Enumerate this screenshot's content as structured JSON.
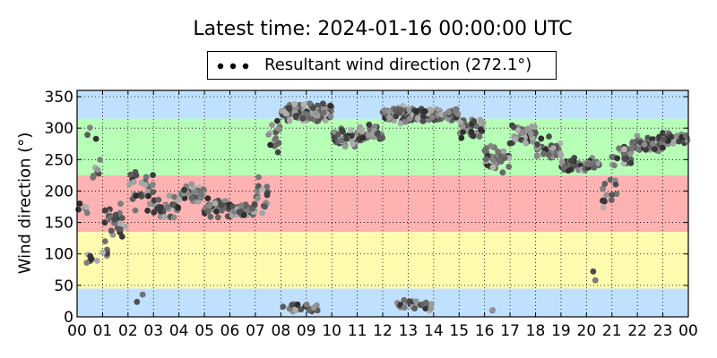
{
  "chart_data": {
    "type": "scatter",
    "title": "Latest time: 2024-01-16 00:00:00 UTC",
    "ylabel": "Wind direction (°)",
    "xlabel": "",
    "legend": {
      "label": "Resultant wind direction (272.1°)",
      "placement": "top-center"
    },
    "x_range_hours": [
      0,
      24
    ],
    "ylim": [
      0,
      360
    ],
    "x_tick_labels": [
      "00",
      "01",
      "02",
      "03",
      "04",
      "05",
      "06",
      "07",
      "08",
      "09",
      "10",
      "11",
      "12",
      "13",
      "14",
      "15",
      "16",
      "17",
      "18",
      "19",
      "20",
      "21",
      "22",
      "23",
      "00"
    ],
    "y_ticks": [
      0,
      50,
      100,
      150,
      200,
      250,
      300,
      350
    ],
    "grid": true,
    "bands": [
      {
        "from": 0,
        "to": 45,
        "color": "#bfe1ff"
      },
      {
        "from": 45,
        "to": 135,
        "color": "#fffbaf"
      },
      {
        "from": 135,
        "to": 225,
        "color": "#ffb2b2"
      },
      {
        "from": 225,
        "to": 315,
        "color": "#b7ffb6"
      },
      {
        "from": 315,
        "to": 360,
        "color": "#bfe1ff"
      }
    ],
    "point_color_range": [
      "#2a2a2a",
      "#b4b4b4"
    ],
    "series": [
      {
        "segments": [
          {
            "from": 0.0,
            "to": 0.5,
            "center": 170,
            "spread": 15,
            "density": 8
          },
          {
            "from": 0.3,
            "to": 0.8,
            "center": 90,
            "spread": 20,
            "density": 8
          },
          {
            "from": 0.5,
            "to": 1.0,
            "center": 240,
            "spread": 40,
            "density": 10
          },
          {
            "from": 1.0,
            "to": 2.0,
            "center": 150,
            "spread": 40,
            "density": 22
          },
          {
            "from": 1.0,
            "to": 1.3,
            "center": 100,
            "spread": 15,
            "density": 10
          },
          {
            "from": 2.0,
            "to": 3.0,
            "center": 200,
            "spread": 45,
            "density": 20
          },
          {
            "from": 3.0,
            "to": 4.0,
            "center": 175,
            "spread": 25,
            "density": 22
          },
          {
            "from": 4.0,
            "to": 5.0,
            "center": 195,
            "spread": 20,
            "density": 30
          },
          {
            "from": 5.0,
            "to": 6.0,
            "center": 175,
            "spread": 20,
            "density": 38
          },
          {
            "from": 6.0,
            "to": 7.0,
            "center": 170,
            "spread": 15,
            "density": 50
          },
          {
            "from": 7.0,
            "to": 7.5,
            "center": 195,
            "spread": 35,
            "density": 24
          },
          {
            "from": 7.5,
            "to": 8.0,
            "center": 290,
            "spread": 35,
            "density": 24
          },
          {
            "from": 8.0,
            "to": 10.0,
            "center": 325,
            "spread": 18,
            "density": 60
          },
          {
            "from": 10.0,
            "to": 11.0,
            "center": 285,
            "spread": 20,
            "density": 32
          },
          {
            "from": 11.0,
            "to": 12.0,
            "center": 290,
            "spread": 18,
            "density": 30
          },
          {
            "from": 12.0,
            "to": 13.0,
            "center": 320,
            "spread": 20,
            "density": 32
          },
          {
            "from": 13.0,
            "to": 15.0,
            "center": 320,
            "spread": 15,
            "density": 50
          },
          {
            "from": 15.0,
            "to": 16.0,
            "center": 300,
            "spread": 25,
            "density": 30
          },
          {
            "from": 16.0,
            "to": 17.0,
            "center": 250,
            "spread": 30,
            "density": 24
          },
          {
            "from": 17.0,
            "to": 18.0,
            "center": 290,
            "spread": 25,
            "density": 28
          },
          {
            "from": 18.0,
            "to": 19.0,
            "center": 265,
            "spread": 25,
            "density": 24
          },
          {
            "from": 19.0,
            "to": 20.0,
            "center": 240,
            "spread": 15,
            "density": 32
          },
          {
            "from": 20.0,
            "to": 20.6,
            "center": 245,
            "spread": 15,
            "density": 18
          },
          {
            "from": 20.6,
            "to": 21.2,
            "center": 200,
            "spread": 40,
            "density": 16
          },
          {
            "from": 21.0,
            "to": 21.8,
            "center": 255,
            "spread": 20,
            "density": 24
          },
          {
            "from": 21.8,
            "to": 23.0,
            "center": 275,
            "spread": 18,
            "density": 40
          },
          {
            "from": 23.0,
            "to": 24.0,
            "center": 285,
            "spread": 18,
            "density": 30
          },
          {
            "from": 8.0,
            "to": 9.5,
            "center": 15,
            "spread": 12,
            "density": 8
          },
          {
            "from": 12.5,
            "to": 14.0,
            "center": 18,
            "spread": 12,
            "density": 14
          },
          {
            "from": 16.3,
            "to": 16.6,
            "center": 12,
            "spread": 8,
            "density": 4
          },
          {
            "from": 20.2,
            "to": 20.4,
            "center": 65,
            "spread": 25,
            "density": 6
          },
          {
            "from": 2.3,
            "to": 2.6,
            "center": 30,
            "spread": 20,
            "density": 4
          },
          {
            "from": 0.4,
            "to": 0.8,
            "center": 290,
            "spread": 30,
            "density": 5
          }
        ]
      }
    ]
  }
}
